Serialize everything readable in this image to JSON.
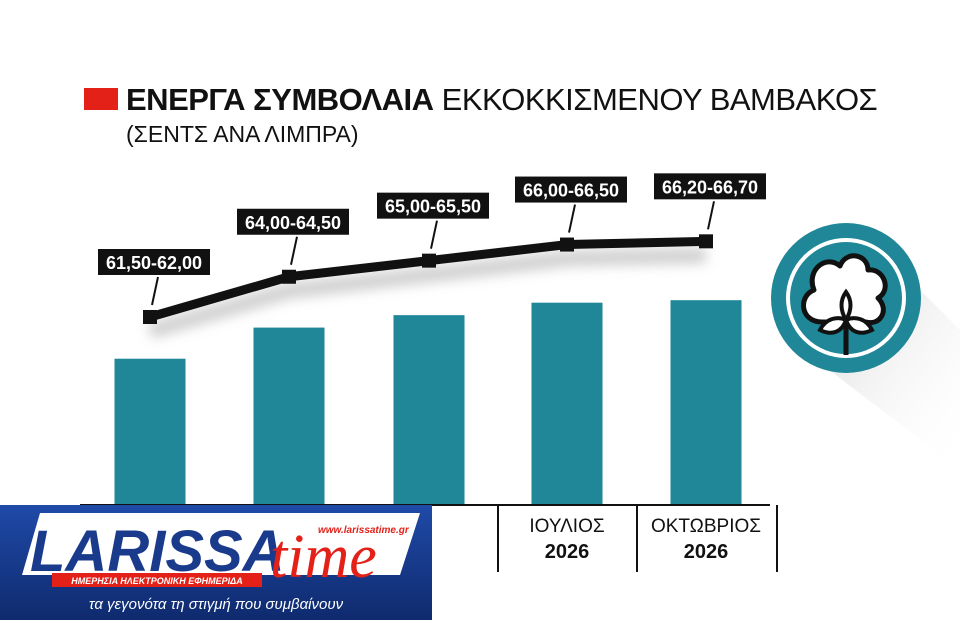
{
  "chart_data": {
    "type": "bar",
    "title_bold": "ΕΝΕΡΓΑ ΣΥΜΒΟΛΑΙΑ",
    "title_rest": "ΕΚΚΟΚΚΙΣΜΕΝΟΥ ΒΑΜΒΑΚΟΣ",
    "subtitle": "(ΣΕΝΤΣ ΑΝΑ ΛΙΜΠΡΑ)",
    "categories": [
      {
        "month": "",
        "year": ""
      },
      {
        "month": "",
        "year": ""
      },
      {
        "month": "",
        "year": ""
      },
      {
        "month": "ΙΟΥΛΙΟΣ",
        "year": "2026"
      },
      {
        "month": "ΟΚΤΩΒΡΙΟΣ",
        "year": "2026"
      }
    ],
    "series": [
      {
        "low": 61.5,
        "high": 62.0,
        "label": "61,50-62,00"
      },
      {
        "low": 64.0,
        "high": 64.5,
        "label": "64,00-64,50"
      },
      {
        "low": 65.0,
        "high": 65.5,
        "label": "65,00-65,50"
      },
      {
        "low": 66.0,
        "high": 66.5,
        "label": "66,00-66,50"
      },
      {
        "low": 66.2,
        "high": 66.7,
        "label": "66,20-66,70"
      }
    ]
  },
  "colors": {
    "bar": "#1f8797",
    "line": "#111111",
    "title_square": "#e32119",
    "cotton_circle": "#1f8797",
    "logo_blue": "#1a3a8c",
    "logo_red": "#e32119"
  },
  "icon": "cotton-boll-icon",
  "logo": {
    "name": "LARISSA",
    "name2": "time",
    "website": "www.larissatime.gr",
    "tagline": "ΗΜΕΡΗΣΙΑ ΗΛΕΚΤΡΟΝΙΚΗ ΕΦΗΜΕΡΙΔΑ",
    "slogan": "τα γεγονότα τη στιγμή που συμβαίνουν"
  }
}
